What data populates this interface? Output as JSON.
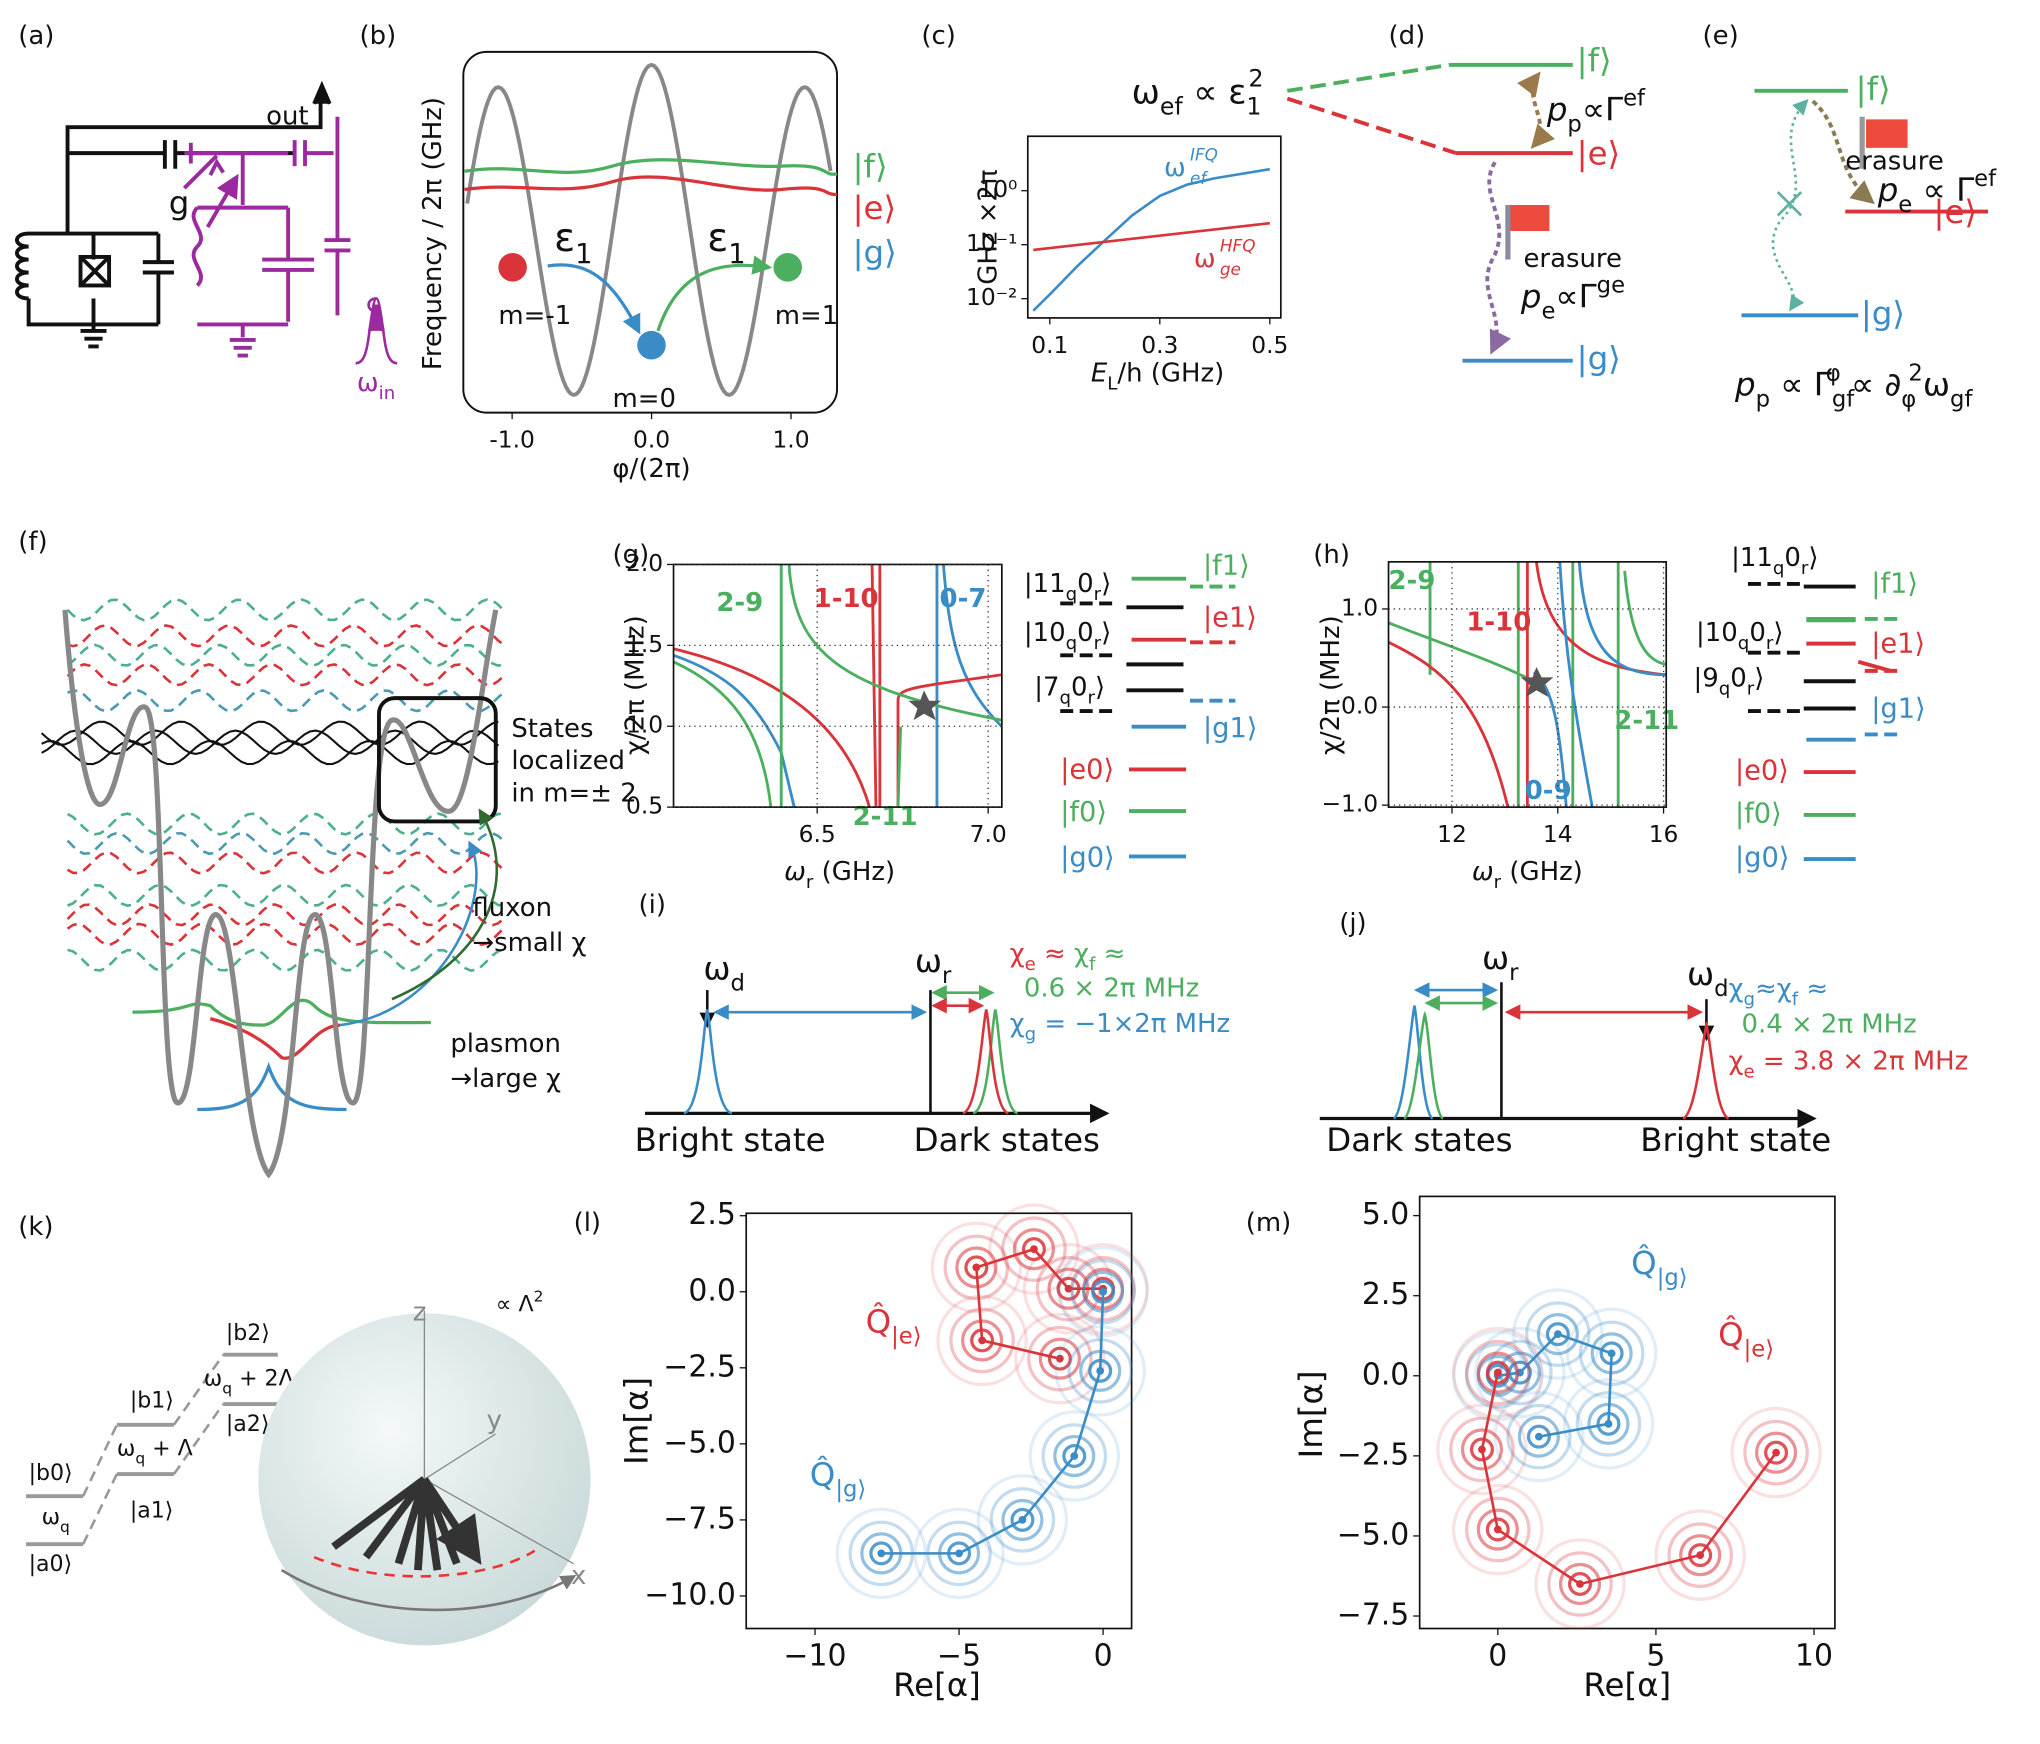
{
  "labels": [
    "(a)",
    "(b)",
    "(c)",
    "(d)",
    "(e)",
    "(f)",
    "(g)",
    "(h)",
    "(i)",
    "(j)",
    "(k)",
    "(l)",
    "(m)"
  ],
  "a": {
    "out": "out",
    "g": "g",
    "omega_in": [
      "ω",
      "in"
    ]
  },
  "b": {
    "ylabel": "Frequency / 2π (GHz)",
    "xlabel": "φ/(2π)",
    "xlim": [
      -1.35,
      1.33
    ],
    "xticks": [
      {
        "value": -1,
        "label": "-1.0"
      },
      {
        "value": 0,
        "label": "0.0"
      },
      {
        "value": 1,
        "label": "1.0"
      }
    ],
    "states": [
      "|f⟩",
      "|e⟩",
      "|g⟩"
    ],
    "eps": [
      "ε",
      "1"
    ],
    "wells": [
      "m=-1",
      "m=0",
      "m=1"
    ]
  },
  "c": {
    "type": "line",
    "ylabel": "GHz ×2π",
    "xlabel": [
      "E",
      "L",
      "/h (GHz)"
    ],
    "xlim": [
      0.06,
      0.52
    ],
    "ylim": [
      0.0044,
      10.2
    ],
    "log_y": true,
    "xticks": [
      0.1,
      0.3,
      0.5
    ],
    "yticks": [
      {
        "value": 0.01,
        "label": "10⁻²"
      },
      {
        "value": 0.1,
        "label": "10⁻¹"
      },
      {
        "value": 1,
        "label": "10⁰"
      }
    ],
    "series": [
      {
        "name": {
          "base": "ω",
          "sub": "ef",
          "sup": "IFQ"
        },
        "color": "#3a8cc7",
        "x": [
          0.07,
          0.1,
          0.15,
          0.2,
          0.25,
          0.3,
          0.35,
          0.4,
          0.5
        ],
        "values": [
          0.006,
          0.012,
          0.04,
          0.12,
          0.35,
          0.8,
          1.3,
          1.7,
          2.5
        ]
      },
      {
        "name": {
          "base": "ω",
          "sub": "ge",
          "sup": "HFQ"
        },
        "color": "#d9343a",
        "x": [
          0.07,
          0.5
        ],
        "values": [
          0.08,
          0.25
        ]
      }
    ]
  },
  "d": {
    "title": [
      "ω",
      "ef",
      " ∝ ε",
      "1",
      "2"
    ],
    "states": [
      "|f⟩",
      "|e⟩",
      "|g⟩"
    ],
    "pp": [
      "p",
      "p",
      "∝Γ",
      "ef"
    ],
    "erasure": "erasure",
    "pe": [
      "p",
      "e",
      "∝Γ",
      "ge"
    ]
  },
  "e": {
    "states": [
      "|f⟩",
      "|e⟩",
      "|g⟩"
    ],
    "erasure": "erasure",
    "pe": [
      "p",
      "e",
      " ∝ Γ",
      "ef"
    ],
    "pp": [
      "p",
      "p",
      " ∝ Γ",
      "φ",
      "gf",
      " ∝ ∂",
      "φ",
      "2",
      "ω",
      "gf"
    ]
  },
  "f": {
    "localized": [
      "States",
      "localized",
      "in m=± 2"
    ],
    "fluxon": [
      "fluxon",
      "→small χ"
    ],
    "plasmon": [
      "plasmon",
      "→large χ"
    ]
  },
  "g": {
    "ylabel": "χ/2π (MHz)",
    "xlabel": [
      "ω",
      "r",
      " (GHz)"
    ],
    "xlim": [
      6.08,
      7.04
    ],
    "ylim": [
      0.5,
      2.0
    ],
    "grid": true,
    "xticks": [
      6.5,
      {
        "value": 7,
        "label": "7.0"
      }
    ],
    "yticks": [
      0.5,
      {
        "value": 1,
        "label": "1.0"
      },
      1.5,
      {
        "value": 2,
        "label": "2.0"
      }
    ],
    "annotations": [
      "2-9",
      "1-10",
      "0-7",
      "2-11"
    ],
    "levels": [
      [
        "|11",
        "q",
        "0",
        "r",
        "⟩"
      ],
      [
        "|10",
        "q",
        "0",
        "r",
        "⟩"
      ],
      [
        "|7",
        "q",
        "0",
        "r",
        "⟩"
      ]
    ],
    "states": [
      "|f1⟩",
      "|e1⟩",
      "|g1⟩",
      "|e0⟩",
      "|f0⟩",
      "|g0⟩"
    ]
  },
  "h": {
    "ylabel": "χ/2π (MHz)",
    "xlabel": [
      "ω",
      "r",
      " (GHz)"
    ],
    "xlim": [
      10.8,
      16.05
    ],
    "ylim": [
      -1.02,
      1.48
    ],
    "grid": true,
    "xticks": [
      12,
      14,
      16
    ],
    "yticks": [
      {
        "value": -1,
        "label": "−1.0"
      },
      {
        "value": 0,
        "label": "0.0"
      },
      {
        "value": 1,
        "label": "1.0"
      }
    ],
    "annotations": [
      "2-9",
      "1-10",
      "2-11",
      "0-9"
    ],
    "levels": [
      [
        "|11",
        "q",
        "0",
        "r",
        "⟩"
      ],
      [
        "|10",
        "q",
        "0",
        "r",
        "⟩"
      ],
      [
        "|9",
        "q",
        "0",
        "r",
        "⟩"
      ]
    ],
    "states": [
      "|f1⟩",
      "|e1⟩",
      "|g1⟩",
      "|e0⟩",
      "|f0⟩",
      "|g0⟩"
    ]
  },
  "i": {
    "wd": [
      "ω",
      "d"
    ],
    "wr": [
      "ω",
      "r"
    ],
    "chi1": [
      "χ",
      "e",
      " ≈ ",
      "χ",
      "f",
      " ≈"
    ],
    "chi1v": "0.6 × 2π MHz",
    "chi2": [
      "χ",
      "g",
      " = −1×2π MHz"
    ],
    "left": "Bright state",
    "right": "Dark states"
  },
  "j": {
    "wr": [
      "ω",
      "r"
    ],
    "wd": [
      "ω",
      "d"
    ],
    "chi1": [
      "χ",
      "g",
      "≈",
      "χ",
      "f",
      " ≈"
    ],
    "chi1v": "0.4 × 2π MHz",
    "chi2": [
      "χ",
      "e",
      " = 3.8 × 2π MHz"
    ],
    "left": "Dark states",
    "right": "Bright state"
  },
  "k": {
    "levels": [
      "|b2⟩",
      "|b1⟩",
      "|b0⟩",
      "|a0⟩",
      "|a1⟩",
      "|a2⟩"
    ],
    "w0": [
      "ω",
      "q"
    ],
    "w1": [
      "ω",
      "q",
      " + Λ"
    ],
    "w2": [
      "ω",
      "q",
      " + 2Λ"
    ],
    "prop": [
      "∝ Λ",
      "2"
    ],
    "axes": [
      "z",
      "y",
      "x"
    ]
  },
  "l": {
    "type": "scatter",
    "xlabel": "Re[α]",
    "ylabel": "Im[α]",
    "xlim": [
      -12.39,
      0.99
    ],
    "ylim": [
      -11.07,
      2.58
    ],
    "xticks": [
      {
        "value": -10,
        "label": "−10"
      },
      {
        "value": -5,
        "label": "−5"
      },
      0
    ],
    "yticks": [
      2.5,
      {
        "value": 0,
        "label": "0.0"
      },
      {
        "value": -2.5,
        "label": "−2.5"
      },
      {
        "value": -5,
        "label": "−5.0"
      },
      {
        "value": -7.5,
        "label": "−7.5"
      },
      {
        "value": -10,
        "label": "−10.0"
      }
    ],
    "series": [
      {
        "name": [
          "Q̂",
          "|e⟩"
        ],
        "color": "#d9343a",
        "x": [
          0,
          -1.2,
          -2.4,
          -4.4,
          -4.2,
          -1.5
        ],
        "values": [
          0.1,
          0.1,
          1.4,
          0.8,
          -1.6,
          -2.2
        ]
      },
      {
        "name": [
          "Q̂",
          "|g⟩"
        ],
        "color": "#3a8cc7",
        "x": [
          0,
          -0.1,
          -1.0,
          -2.8,
          -5.0,
          -7.7
        ],
        "values": [
          0,
          -2.6,
          -5.4,
          -7.5,
          -8.6,
          -8.6
        ]
      }
    ]
  },
  "m": {
    "type": "scatter",
    "xlabel": "Re[α]",
    "ylabel": "Im[α]",
    "xlim": [
      -2.47,
      10.66
    ],
    "ylim": [
      -7.89,
      5.6
    ],
    "xticks": [
      0,
      5,
      10
    ],
    "yticks": [
      {
        "value": 5,
        "label": "5.0"
      },
      2.5,
      {
        "value": 0,
        "label": "0.0"
      },
      {
        "value": -2.5,
        "label": "−2.5"
      },
      {
        "value": -5,
        "label": "−5.0"
      },
      {
        "value": -7.5,
        "label": "−7.5"
      }
    ],
    "series": [
      {
        "name": [
          "Q̂",
          "|g⟩"
        ],
        "color": "#3a8cc7",
        "x": [
          0,
          0.7,
          1.9,
          3.6,
          3.5,
          1.3
        ],
        "values": [
          0,
          0.1,
          1.3,
          0.7,
          -1.5,
          -1.9
        ]
      },
      {
        "name": [
          "Q̂",
          "|e⟩"
        ],
        "color": "#d9343a",
        "x": [
          0,
          -0.5,
          0,
          2.6,
          6.4,
          8.8
        ],
        "values": [
          0.1,
          -2.3,
          -4.8,
          -6.5,
          -5.6,
          -2.4
        ]
      }
    ]
  }
}
